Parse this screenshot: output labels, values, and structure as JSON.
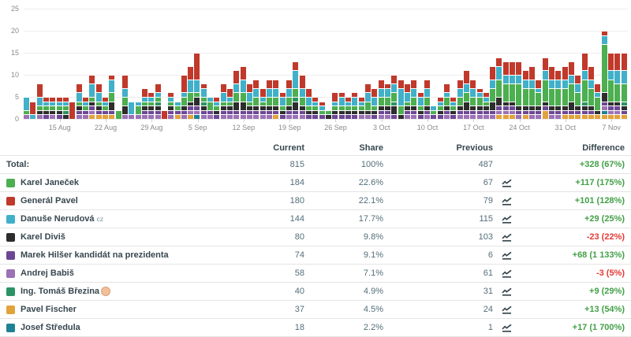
{
  "chart_data": {
    "type": "bar",
    "stacked": true,
    "title": "",
    "xlabel": "",
    "ylabel": "",
    "ylim": [
      0,
      25
    ],
    "yticks": [
      0,
      5,
      10,
      15,
      20,
      25
    ],
    "grid": true,
    "legend_position": "none",
    "grid_color": "#ececec",
    "axis_label_color": "#8a8a8a",
    "x_tick_labels": [
      "15 Aug",
      "22 Aug",
      "29 Aug",
      "5 Sep",
      "12 Sep",
      "19 Sep",
      "26 Sep",
      "3 Oct",
      "10 Oct",
      "17 Oct",
      "24 Oct",
      "31 Oct",
      "7 Nov"
    ],
    "x_tick_indices": [
      5,
      12,
      19,
      26,
      33,
      40,
      47,
      54,
      61,
      68,
      75,
      82,
      89
    ],
    "num_bars": 92,
    "series_keys": [
      {
        "key": "janecek",
        "name": "Karel Janeček",
        "color": "#4caf50"
      },
      {
        "key": "pavel",
        "name": "Generál Pavel",
        "color": "#c0392b"
      },
      {
        "key": "nerudova",
        "name": "Danuše Nerudová cz",
        "color": "#41b0c9"
      },
      {
        "key": "divis",
        "name": "Karel Diviš",
        "color": "#2d2d2d"
      },
      {
        "key": "hilser",
        "name": "Marek Hilšer kandidát na prezidenta",
        "color": "#6d4794"
      },
      {
        "key": "babis",
        "name": "Andrej Babiš",
        "color": "#9b72b5"
      },
      {
        "key": "brezina",
        "name": "Ing. Tomáš Březina",
        "color": "#2c9464"
      },
      {
        "key": "fischer",
        "name": "Pavel Fischer",
        "color": "#e2a23b"
      },
      {
        "key": "stredula",
        "name": "Josef Středula",
        "color": "#1f8292"
      }
    ],
    "stack_render_order_bottom_to_top": [
      7,
      8,
      5,
      4,
      3,
      6,
      0,
      2,
      1
    ],
    "stacks": [
      [
        1,
        0,
        3,
        0,
        0,
        1,
        0,
        0,
        0
      ],
      [
        0,
        3,
        1,
        0,
        0,
        0,
        0,
        0,
        0
      ],
      [
        1,
        3,
        2,
        1,
        0,
        1,
        0,
        0,
        0
      ],
      [
        1,
        1,
        1,
        1,
        1,
        0,
        0,
        0,
        0
      ],
      [
        1,
        1,
        1,
        1,
        0,
        1,
        0,
        0,
        0
      ],
      [
        1,
        1,
        1,
        1,
        1,
        0,
        0,
        0,
        0
      ],
      [
        1,
        1,
        1,
        1,
        0,
        0,
        1,
        0,
        0
      ],
      [
        0,
        4,
        0,
        0,
        0,
        0,
        0,
        0,
        0
      ],
      [
        1,
        2,
        2,
        1,
        1,
        1,
        0,
        0,
        0
      ],
      [
        1,
        1,
        1,
        0,
        1,
        1,
        0,
        0,
        0
      ],
      [
        1,
        2,
        3,
        1,
        1,
        1,
        0,
        1,
        0
      ],
      [
        1,
        2,
        2,
        1,
        1,
        0,
        0,
        1,
        0
      ],
      [
        1,
        1,
        1,
        0,
        1,
        0,
        0,
        1,
        0
      ],
      [
        2,
        1,
        3,
        2,
        1,
        0,
        0,
        1,
        0
      ],
      [
        2,
        0,
        0,
        0,
        0,
        0,
        0,
        0,
        0
      ],
      [
        2,
        3,
        2,
        2,
        0,
        1,
        0,
        0,
        0
      ],
      [
        0,
        0,
        3,
        0,
        0,
        1,
        0,
        0,
        0
      ],
      [
        2,
        0,
        1,
        0,
        0,
        1,
        0,
        0,
        0
      ],
      [
        1,
        2,
        1,
        1,
        1,
        1,
        0,
        0,
        0
      ],
      [
        1,
        1,
        1,
        1,
        1,
        1,
        0,
        0,
        0
      ],
      [
        1,
        2,
        1,
        1,
        1,
        1,
        1,
        0,
        0
      ],
      [
        0,
        2,
        0,
        0,
        0,
        0,
        0,
        0,
        0
      ],
      [
        1,
        1,
        1,
        1,
        1,
        1,
        0,
        0,
        0
      ],
      [
        1,
        0,
        1,
        0,
        1,
        0,
        0,
        1,
        0
      ],
      [
        2,
        4,
        1,
        1,
        1,
        1,
        0,
        0,
        0
      ],
      [
        2,
        3,
        3,
        1,
        1,
        1,
        0,
        1,
        0
      ],
      [
        1,
        6,
        3,
        2,
        1,
        1,
        0,
        0,
        1
      ],
      [
        1,
        1,
        2,
        1,
        1,
        1,
        1,
        0,
        0
      ],
      [
        2,
        0,
        1,
        0,
        1,
        1,
        0,
        0,
        0
      ],
      [
        1,
        1,
        1,
        1,
        1,
        0,
        0,
        0,
        0
      ],
      [
        1,
        2,
        2,
        1,
        1,
        1,
        0,
        0,
        0
      ],
      [
        1,
        2,
        1,
        1,
        1,
        1,
        0,
        0,
        0
      ],
      [
        2,
        3,
        2,
        2,
        1,
        1,
        0,
        0,
        0
      ],
      [
        2,
        3,
        3,
        2,
        1,
        1,
        0,
        0,
        0
      ],
      [
        1,
        2,
        2,
        1,
        1,
        1,
        0,
        0,
        0
      ],
      [
        2,
        2,
        2,
        1,
        1,
        1,
        0,
        0,
        0
      ],
      [
        1,
        2,
        1,
        1,
        1,
        1,
        0,
        0,
        0
      ],
      [
        2,
        2,
        2,
        1,
        1,
        1,
        0,
        0,
        0
      ],
      [
        2,
        2,
        2,
        1,
        1,
        0,
        0,
        1,
        0
      ],
      [
        1,
        1,
        2,
        1,
        1,
        0,
        0,
        0,
        0
      ],
      [
        2,
        2,
        2,
        1,
        1,
        1,
        0,
        0,
        0
      ],
      [
        2,
        2,
        4,
        2,
        1,
        1,
        1,
        0,
        0
      ],
      [
        2,
        3,
        2,
        1,
        1,
        1,
        0,
        0,
        0
      ],
      [
        1,
        2,
        2,
        1,
        1,
        0,
        0,
        0,
        0
      ],
      [
        1,
        1,
        1,
        1,
        1,
        0,
        0,
        0,
        0
      ],
      [
        1,
        1,
        1,
        0,
        1,
        0,
        0,
        0,
        0
      ],
      [
        1,
        0,
        0,
        1,
        0,
        0,
        0,
        0,
        0
      ],
      [
        1,
        2,
        1,
        1,
        1,
        0,
        0,
        0,
        0
      ],
      [
        1,
        1,
        2,
        1,
        1,
        0,
        0,
        0,
        0
      ],
      [
        1,
        1,
        1,
        1,
        1,
        0,
        0,
        0,
        0
      ],
      [
        1,
        1,
        2,
        1,
        1,
        0,
        0,
        0,
        0
      ],
      [
        1,
        1,
        1,
        1,
        0,
        1,
        0,
        0,
        0
      ],
      [
        2,
        2,
        2,
        1,
        0,
        1,
        0,
        0,
        0
      ],
      [
        1,
        2,
        2,
        1,
        1,
        0,
        0,
        0,
        0
      ],
      [
        2,
        2,
        2,
        1,
        1,
        1,
        0,
        0,
        0
      ],
      [
        2,
        1,
        2,
        1,
        1,
        1,
        0,
        0,
        0
      ],
      [
        2,
        2,
        2,
        2,
        1,
        0,
        1,
        0,
        0
      ],
      [
        2,
        2,
        4,
        1,
        0,
        0,
        0,
        0,
        0
      ],
      [
        1,
        2,
        2,
        1,
        1,
        1,
        0,
        0,
        0
      ],
      [
        2,
        2,
        2,
        1,
        1,
        1,
        0,
        0,
        0
      ],
      [
        1,
        1,
        2,
        1,
        1,
        0,
        0,
        0,
        0
      ],
      [
        2,
        2,
        2,
        1,
        1,
        1,
        0,
        0,
        0
      ],
      [
        1,
        0,
        1,
        0,
        1,
        0,
        0,
        0,
        0
      ],
      [
        1,
        1,
        1,
        1,
        1,
        0,
        0,
        0,
        0
      ],
      [
        2,
        2,
        1,
        1,
        1,
        1,
        0,
        0,
        0
      ],
      [
        1,
        1,
        1,
        1,
        1,
        0,
        0,
        0,
        0
      ],
      [
        2,
        2,
        2,
        1,
        1,
        1,
        0,
        0,
        0
      ],
      [
        2,
        3,
        2,
        2,
        1,
        1,
        0,
        0,
        0
      ],
      [
        2,
        2,
        2,
        1,
        1,
        1,
        0,
        0,
        0
      ],
      [
        2,
        1,
        1,
        1,
        1,
        1,
        0,
        0,
        0
      ],
      [
        1,
        1,
        1,
        1,
        1,
        1,
        0,
        0,
        0
      ],
      [
        3,
        3,
        2,
        2,
        1,
        1,
        0,
        0,
        0
      ],
      [
        4,
        2,
        3,
        2,
        1,
        1,
        0,
        1,
        0
      ],
      [
        4,
        3,
        2,
        1,
        1,
        1,
        0,
        1,
        0
      ],
      [
        4,
        3,
        2,
        1,
        1,
        1,
        0,
        1,
        0
      ],
      [
        5,
        3,
        2,
        1,
        1,
        1,
        0,
        0,
        0
      ],
      [
        4,
        2,
        2,
        1,
        1,
        0,
        0,
        1,
        0
      ],
      [
        4,
        3,
        2,
        1,
        1,
        1,
        0,
        0,
        0
      ],
      [
        3,
        2,
        1,
        1,
        1,
        1,
        0,
        0,
        0
      ],
      [
        5,
        3,
        2,
        1,
        1,
        0,
        0,
        2,
        0
      ],
      [
        4,
        3,
        2,
        1,
        1,
        1,
        0,
        0,
        0
      ],
      [
        4,
        2,
        2,
        1,
        1,
        1,
        0,
        0,
        0
      ],
      [
        4,
        3,
        2,
        1,
        1,
        0,
        0,
        1,
        0
      ],
      [
        4,
        3,
        2,
        2,
        1,
        0,
        0,
        1,
        0
      ],
      [
        3,
        2,
        2,
        1,
        1,
        0,
        0,
        1,
        0
      ],
      [
        5,
        4,
        2,
        1,
        1,
        0,
        1,
        1,
        0
      ],
      [
        4,
        3,
        2,
        1,
        1,
        0,
        0,
        1,
        0
      ],
      [
        3,
        2,
        1,
        1,
        0,
        0,
        0,
        1,
        0
      ],
      [
        11,
        1,
        2,
        2,
        1,
        1,
        0,
        1,
        1
      ],
      [
        5,
        4,
        2,
        1,
        1,
        1,
        0,
        1,
        0
      ],
      [
        4,
        4,
        3,
        1,
        1,
        1,
        0,
        1,
        0
      ],
      [
        4,
        4,
        3,
        1,
        1,
        0,
        1,
        1,
        0
      ]
    ]
  },
  "table": {
    "columns": [
      "Current",
      "Share",
      "Previous",
      "Difference"
    ],
    "total": {
      "label": "Total:",
      "current": "815",
      "share": "100%",
      "previous": "487",
      "difference": "+328 (67%)",
      "positive": true
    },
    "rows": [
      {
        "name": "Karel Janeček",
        "color": "#4caf50",
        "current": "184",
        "share": "22.6%",
        "previous": "67",
        "difference": "+117 (175%)",
        "positive": true
      },
      {
        "name": "Generál Pavel",
        "color": "#c0392b",
        "current": "180",
        "share": "22.1%",
        "previous": "79",
        "difference": "+101 (128%)",
        "positive": true
      },
      {
        "name": "Danuše Nerudová",
        "suffix": "cz",
        "color": "#41b0c9",
        "current": "144",
        "share": "17.7%",
        "previous": "115",
        "difference": "+29 (25%)",
        "positive": true
      },
      {
        "name": "Karel Diviš",
        "color": "#2d2d2d",
        "current": "80",
        "share": "9.8%",
        "previous": "103",
        "difference": "-23 (22%)",
        "positive": false
      },
      {
        "name": "Marek Hilšer kandidát na prezidenta",
        "color": "#6d4794",
        "current": "74",
        "share": "9.1%",
        "previous": "6",
        "difference": "+68 (1 133%)",
        "positive": true
      },
      {
        "name": "Andrej Babiš",
        "color": "#9b72b5",
        "current": "58",
        "share": "7.1%",
        "previous": "61",
        "difference": "-3 (5%)",
        "positive": false
      },
      {
        "name": "Ing. Tomáš Březina",
        "emoji": true,
        "color": "#2c9464",
        "current": "40",
        "share": "4.9%",
        "previous": "31",
        "difference": "+9 (29%)",
        "positive": true
      },
      {
        "name": "Pavel Fischer",
        "color": "#e2a23b",
        "current": "37",
        "share": "4.5%",
        "previous": "24",
        "difference": "+13 (54%)",
        "positive": true
      },
      {
        "name": "Josef Středula",
        "color": "#1f8292",
        "current": "18",
        "share": "2.2%",
        "previous": "1",
        "difference": "+17 (1 700%)",
        "positive": true
      }
    ],
    "colors": {
      "positive": "#43a047",
      "negative": "#e53935",
      "trend_icon": "#37474f"
    }
  }
}
